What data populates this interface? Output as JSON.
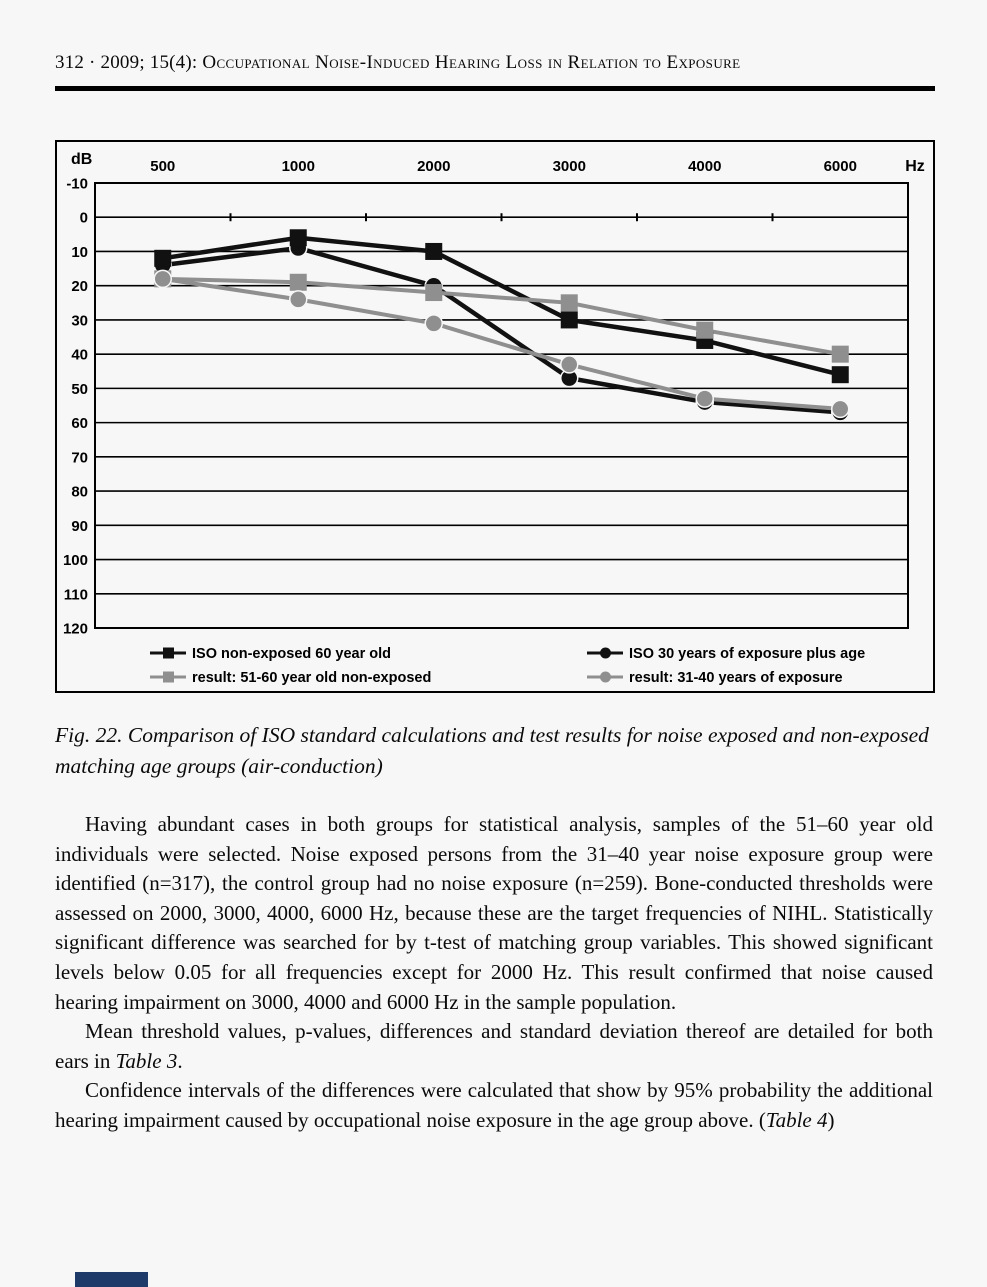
{
  "header": {
    "citation": "312 · 2009; 15(4): ",
    "title": "Occupational Noise-Induced Hearing Loss in Relation to Exposure"
  },
  "figure": {
    "caption": "Fig. 22. Comparison of ISO standard calculations and test results for noise exposed and non-exposed matching age groups (air-conduction)"
  },
  "chart_data": {
    "type": "line",
    "title": "",
    "y_unit": "dB",
    "x_unit": "Hz",
    "categories": [
      "500",
      "1000",
      "2000",
      "3000",
      "4000",
      "6000"
    ],
    "y_ticks": [
      -10,
      0,
      10,
      20,
      30,
      40,
      50,
      60,
      70,
      80,
      90,
      100,
      110,
      120
    ],
    "y_axis": {
      "min": -10,
      "max": 120,
      "inverted": true
    },
    "grid": true,
    "legend_position": "bottom-two-columns",
    "series": [
      {
        "name": "ISO non-exposed 60 year old",
        "marker": "square",
        "color": "#111111",
        "values": [
          12,
          6,
          10,
          30,
          36,
          46
        ]
      },
      {
        "name": "ISO 30 years of exposure plus age",
        "marker": "circle",
        "color": "#111111",
        "values": [
          14,
          9,
          20,
          47,
          54,
          57
        ]
      },
      {
        "name": "result: 51-60 year old non-exposed",
        "marker": "square",
        "color": "#8f8f8f",
        "values": [
          18,
          19,
          22,
          25,
          33,
          40
        ]
      },
      {
        "name": "result: 31-40 years of exposure",
        "marker": "circle",
        "color": "#8f8f8f",
        "values": [
          18,
          24,
          31,
          43,
          53,
          56
        ]
      }
    ],
    "legend_columns": [
      [
        0,
        2
      ],
      [
        1,
        3
      ]
    ],
    "z_order": [
      1,
      0,
      2,
      3
    ]
  },
  "body": {
    "paragraphs": [
      [
        {
          "t": "Having abundant cases in both groups for statistical analysis, samples of the 51–60 year old individuals were selected. Noise exposed persons from the 31–40 year noise exposure group were identified (n=317), the control group had no noise exposure (n=259). Bone-conducted thresholds were assessed on 2000, 3000, 4000, 6000 Hz, because these are the target frequencies of NIHL. Statistically significant difference was searched for by t-test of matching group variables. This showed significant levels below 0.05 for all frequencies except for 2000 Hz. This result confirmed that noise caused hearing impairment on 3000, 4000 and 6000 Hz in the sample population."
        }
      ],
      [
        {
          "t": "Mean threshold values, p-values, differences and standard deviation thereof are detailed for both ears in "
        },
        {
          "t": "Table 3",
          "i": true
        },
        {
          "t": "."
        }
      ],
      [
        {
          "t": "Confidence intervals of the differences were calculated that show by 95% probability the additional hearing impairment caused by occupational noise exposure in the age group above. ("
        },
        {
          "t": "Table 4",
          "i": true
        },
        {
          "t": ")"
        }
      ]
    ]
  }
}
